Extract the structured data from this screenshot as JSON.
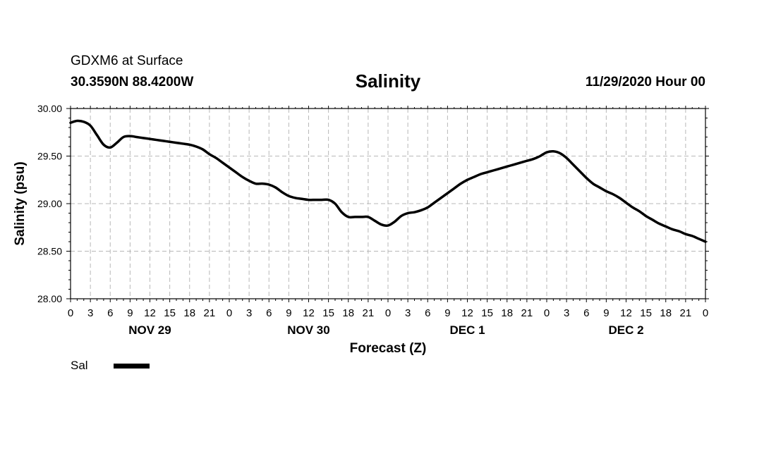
{
  "header": {
    "station": "GDXM6 at Surface",
    "coords": "30.3590N 88.4200W",
    "runtime": "11/29/2020 Hour 00"
  },
  "chart_data": {
    "type": "line",
    "title": "Salinity",
    "xlabel": "Forecast (Z)",
    "ylabel": "Salinity (psu)",
    "ylim": [
      28.0,
      30.0
    ],
    "xlim_hours": [
      0,
      96
    ],
    "grid": true,
    "y_ticks": [
      "28.00",
      "28.50",
      "29.00",
      "29.50",
      "30.00"
    ],
    "x_tick_labels": [
      "0",
      "3",
      "6",
      "9",
      "12",
      "15",
      "18",
      "21",
      "0",
      "3",
      "6",
      "9",
      "12",
      "15",
      "18",
      "21",
      "0",
      "3",
      "6",
      "9",
      "12",
      "15",
      "18",
      "21",
      "0",
      "3",
      "6",
      "9",
      "12",
      "15",
      "18",
      "21",
      "0"
    ],
    "day_labels": [
      {
        "label": "NOV 29",
        "hour": 12
      },
      {
        "label": "NOV 30",
        "hour": 36
      },
      {
        "label": "DEC 1",
        "hour": 60
      },
      {
        "label": "DEC 2",
        "hour": 84
      }
    ],
    "series": [
      {
        "name": "Sal",
        "color": "#000000",
        "x": [
          0,
          1,
          2,
          3,
          4,
          5,
          6,
          7,
          8,
          9,
          10,
          11,
          12,
          13,
          14,
          15,
          16,
          17,
          18,
          19,
          20,
          21,
          22,
          23,
          24,
          25,
          26,
          27,
          28,
          29,
          30,
          31,
          32,
          33,
          34,
          35,
          36,
          37,
          38,
          39,
          40,
          41,
          42,
          43,
          44,
          45,
          46,
          47,
          48,
          49,
          50,
          51,
          52,
          53,
          54,
          55,
          56,
          57,
          58,
          59,
          60,
          61,
          62,
          63,
          64,
          65,
          66,
          67,
          68,
          69,
          70,
          71,
          72,
          73,
          74,
          75,
          76,
          77,
          78,
          79,
          80,
          81,
          82,
          83,
          84,
          85,
          86,
          87,
          88,
          89,
          90,
          91,
          92,
          93,
          94,
          95,
          96
        ],
        "values": [
          29.85,
          29.87,
          29.86,
          29.82,
          29.72,
          29.62,
          29.59,
          29.64,
          29.7,
          29.71,
          29.7,
          29.69,
          29.68,
          29.67,
          29.66,
          29.65,
          29.64,
          29.63,
          29.62,
          29.6,
          29.57,
          29.52,
          29.48,
          29.43,
          29.38,
          29.33,
          29.28,
          29.24,
          29.21,
          29.21,
          29.2,
          29.17,
          29.12,
          29.08,
          29.06,
          29.05,
          29.04,
          29.04,
          29.04,
          29.04,
          29.0,
          28.91,
          28.86,
          28.86,
          28.86,
          28.86,
          28.82,
          28.78,
          28.77,
          28.81,
          28.87,
          28.9,
          28.91,
          28.93,
          28.96,
          29.01,
          29.06,
          29.11,
          29.16,
          29.21,
          29.25,
          29.28,
          29.31,
          29.33,
          29.35,
          29.37,
          29.39,
          29.41,
          29.43,
          29.45,
          29.47,
          29.5,
          29.54,
          29.55,
          29.53,
          29.48,
          29.41,
          29.34,
          29.27,
          29.21,
          29.17,
          29.13,
          29.1,
          29.06,
          29.01,
          28.96,
          28.92,
          28.87,
          28.83,
          28.79,
          28.76,
          28.73,
          28.71,
          28.68,
          28.66,
          28.63,
          28.6
        ]
      }
    ],
    "legend_placement": "bottom-left"
  }
}
